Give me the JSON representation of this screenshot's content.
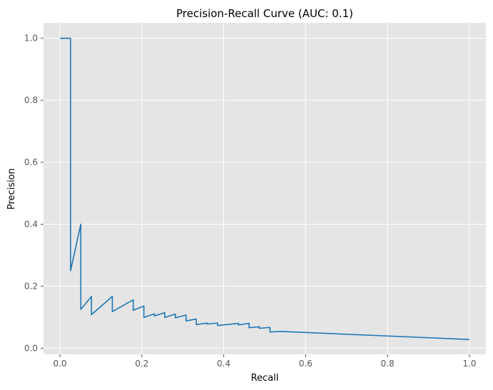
{
  "chart_data": {
    "type": "line",
    "title": "Precision-Recall Curve (AUC: 0.1)",
    "xlabel": "Recall",
    "ylabel": "Precision",
    "xlim": [
      -0.04,
      1.04
    ],
    "ylim": [
      -0.02,
      1.05
    ],
    "xticks": [
      0.0,
      0.2,
      0.4,
      0.6,
      0.8,
      1.0
    ],
    "xtick_labels": [
      "0.0",
      "0.2",
      "0.4",
      "0.6",
      "0.8",
      "1.0"
    ],
    "yticks": [
      0.0,
      0.2,
      0.4,
      0.6,
      0.8,
      1.0
    ],
    "ytick_labels": [
      "0.0",
      "0.2",
      "0.4",
      "0.6",
      "0.8",
      "1.0"
    ],
    "grid": true,
    "style": "ggplot",
    "colors": {
      "line": "#1f77b4",
      "plot_bg": "#e5e5e5",
      "grid": "#ffffff"
    },
    "series": [
      {
        "x": [
          0.0,
          0.026,
          0.026,
          0.026,
          0.051,
          0.051,
          0.051,
          0.077,
          0.077,
          0.128,
          0.128,
          0.179,
          0.179,
          0.205,
          0.205,
          0.231,
          0.231,
          0.256,
          0.256,
          0.282,
          0.282,
          0.308,
          0.308,
          0.333,
          0.333,
          0.359,
          0.359,
          0.385,
          0.385,
          0.436,
          0.436,
          0.462,
          0.462,
          0.487,
          0.487,
          0.513,
          0.513,
          0.538,
          1.0
        ],
        "y": [
          1.0,
          1.0,
          0.25,
          0.25,
          0.4,
          0.4,
          0.125,
          0.167,
          0.108,
          0.167,
          0.118,
          0.156,
          0.122,
          0.136,
          0.099,
          0.111,
          0.104,
          0.115,
          0.099,
          0.11,
          0.098,
          0.107,
          0.088,
          0.094,
          0.076,
          0.081,
          0.078,
          0.081,
          0.073,
          0.08,
          0.075,
          0.08,
          0.066,
          0.069,
          0.064,
          0.067,
          0.052,
          0.054,
          0.028
        ]
      }
    ]
  }
}
